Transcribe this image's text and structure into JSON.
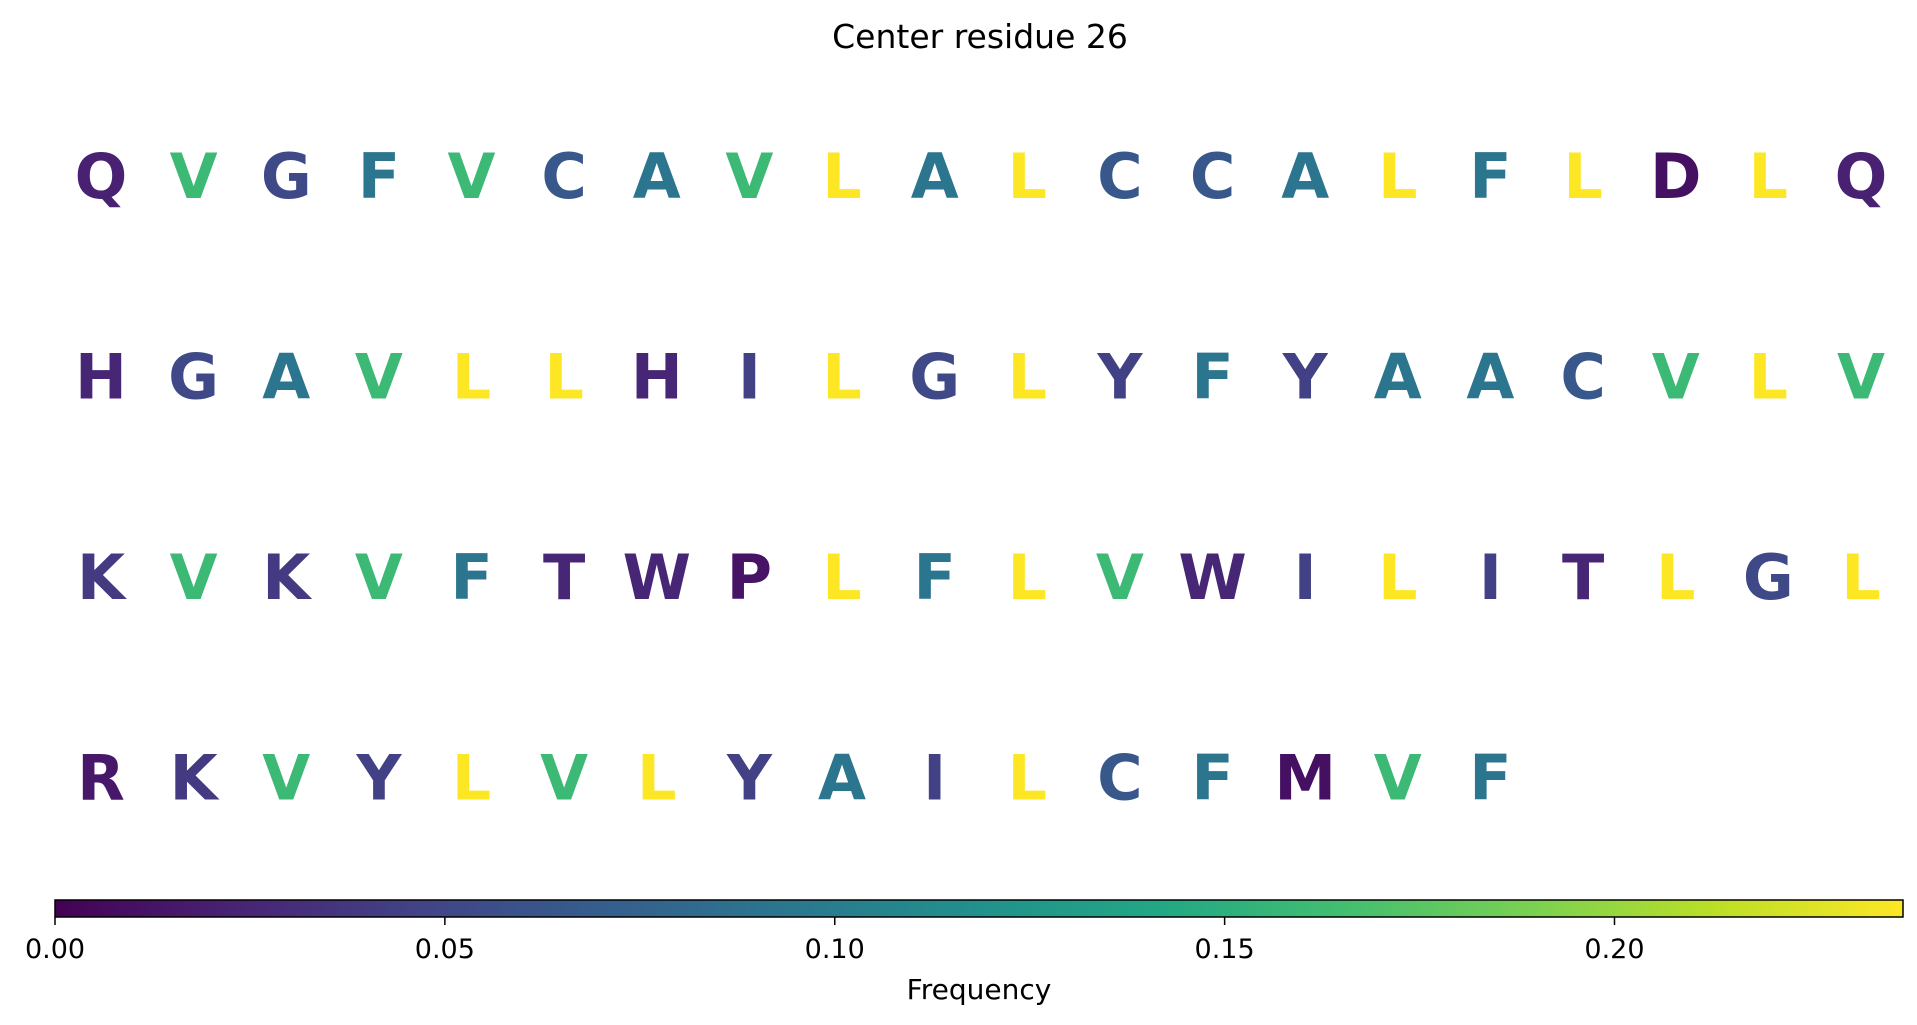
{
  "chart_data": {
    "type": "sequence-logo",
    "title": "Center residue 26",
    "colormap": "viridis",
    "residues": [
      {
        "letter": "Q",
        "freq": 0.022
      },
      {
        "letter": "V",
        "freq": 0.16
      },
      {
        "letter": "G",
        "freq": 0.052
      },
      {
        "letter": "F",
        "freq": 0.092
      },
      {
        "letter": "V",
        "freq": 0.16
      },
      {
        "letter": "C",
        "freq": 0.065
      },
      {
        "letter": "A",
        "freq": 0.092
      },
      {
        "letter": "V",
        "freq": 0.16
      },
      {
        "letter": "L",
        "freq": 0.237
      },
      {
        "letter": "A",
        "freq": 0.092
      },
      {
        "letter": "L",
        "freq": 0.237
      },
      {
        "letter": "C",
        "freq": 0.065
      },
      {
        "letter": "C",
        "freq": 0.065
      },
      {
        "letter": "A",
        "freq": 0.092
      },
      {
        "letter": "L",
        "freq": 0.237
      },
      {
        "letter": "F",
        "freq": 0.092
      },
      {
        "letter": "L",
        "freq": 0.237
      },
      {
        "letter": "D",
        "freq": 0.01
      },
      {
        "letter": "L",
        "freq": 0.237
      },
      {
        "letter": "Q",
        "freq": 0.022
      },
      {
        "letter": "H",
        "freq": 0.025
      },
      {
        "letter": "G",
        "freq": 0.052
      },
      {
        "letter": "A",
        "freq": 0.092
      },
      {
        "letter": "V",
        "freq": 0.16
      },
      {
        "letter": "L",
        "freq": 0.237
      },
      {
        "letter": "L",
        "freq": 0.237
      },
      {
        "letter": "H",
        "freq": 0.025
      },
      {
        "letter": "I",
        "freq": 0.045
      },
      {
        "letter": "L",
        "freq": 0.237
      },
      {
        "letter": "G",
        "freq": 0.052
      },
      {
        "letter": "L",
        "freq": 0.237
      },
      {
        "letter": "Y",
        "freq": 0.045
      },
      {
        "letter": "F",
        "freq": 0.092
      },
      {
        "letter": "Y",
        "freq": 0.045
      },
      {
        "letter": "A",
        "freq": 0.092
      },
      {
        "letter": "A",
        "freq": 0.092
      },
      {
        "letter": "C",
        "freq": 0.065
      },
      {
        "letter": "V",
        "freq": 0.16
      },
      {
        "letter": "L",
        "freq": 0.237
      },
      {
        "letter": "V",
        "freq": 0.16
      },
      {
        "letter": "K",
        "freq": 0.04
      },
      {
        "letter": "V",
        "freq": 0.16
      },
      {
        "letter": "K",
        "freq": 0.04
      },
      {
        "letter": "V",
        "freq": 0.16
      },
      {
        "letter": "F",
        "freq": 0.092
      },
      {
        "letter": "T",
        "freq": 0.025
      },
      {
        "letter": "W",
        "freq": 0.025
      },
      {
        "letter": "P",
        "freq": 0.012
      },
      {
        "letter": "L",
        "freq": 0.237
      },
      {
        "letter": "F",
        "freq": 0.092
      },
      {
        "letter": "L",
        "freq": 0.237
      },
      {
        "letter": "V",
        "freq": 0.16
      },
      {
        "letter": "W",
        "freq": 0.025
      },
      {
        "letter": "I",
        "freq": 0.045
      },
      {
        "letter": "L",
        "freq": 0.237
      },
      {
        "letter": "I",
        "freq": 0.045
      },
      {
        "letter": "T",
        "freq": 0.025
      },
      {
        "letter": "L",
        "freq": 0.237
      },
      {
        "letter": "G",
        "freq": 0.052
      },
      {
        "letter": "L",
        "freq": 0.237
      },
      {
        "letter": "R",
        "freq": 0.015
      },
      {
        "letter": "K",
        "freq": 0.04
      },
      {
        "letter": "V",
        "freq": 0.16
      },
      {
        "letter": "Y",
        "freq": 0.045
      },
      {
        "letter": "L",
        "freq": 0.237
      },
      {
        "letter": "V",
        "freq": 0.16
      },
      {
        "letter": "L",
        "freq": 0.237
      },
      {
        "letter": "Y",
        "freq": 0.045
      },
      {
        "letter": "A",
        "freq": 0.092
      },
      {
        "letter": "I",
        "freq": 0.045
      },
      {
        "letter": "L",
        "freq": 0.237
      },
      {
        "letter": "C",
        "freq": 0.065
      },
      {
        "letter": "F",
        "freq": 0.092
      },
      {
        "letter": "M",
        "freq": 0.01
      },
      {
        "letter": "V",
        "freq": 0.16
      },
      {
        "letter": "F",
        "freq": 0.092
      }
    ],
    "colorbar": {
      "label": "Frequency",
      "range": [
        0,
        0.237
      ],
      "ticks": [
        0.0,
        0.05,
        0.1,
        0.15,
        0.2
      ],
      "tick_labels": [
        "0.00",
        "0.05",
        "0.10",
        "0.15",
        "0.20"
      ]
    }
  }
}
